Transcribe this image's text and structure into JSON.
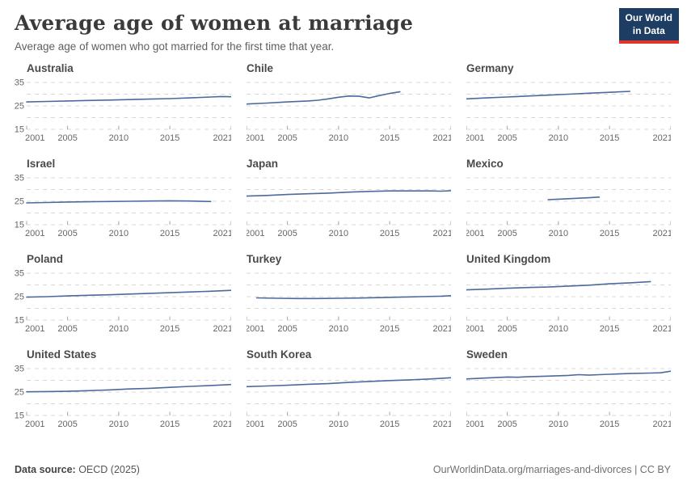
{
  "header": {
    "title": "Average age of women at marriage",
    "subtitle": "Average age of women who got married for the first time that year.",
    "logo": {
      "line1": "Our World",
      "line2": "in Data"
    }
  },
  "footer": {
    "datasource_label": "Data source:",
    "datasource_value": " OECD (2025)",
    "attribution": "OurWorldinData.org/marriages-and-divorces | CC BY"
  },
  "colors": {
    "line": "#4C6A9C",
    "grid": "#d8d8d8",
    "tick_mark": "#a5a5a5",
    "tick_label": "#666666",
    "logo_bg": "#1d3d63",
    "logo_red": "#e0342c"
  },
  "axes": {
    "xlim": [
      2001,
      2021
    ],
    "ylim": [
      15,
      35
    ],
    "xticks": [
      2001,
      2005,
      2010,
      2015,
      2021
    ],
    "yticks": [
      15,
      25,
      35
    ],
    "ygrid": [
      15,
      20,
      25,
      30,
      35
    ],
    "grid_style": "dashed",
    "ylabels_first_column_only": true
  },
  "chart_data": [
    {
      "type": "line",
      "title": "Australia",
      "slug": "australia",
      "points": [
        [
          2001,
          26.7
        ],
        [
          2003,
          26.9
        ],
        [
          2005,
          27.1
        ],
        [
          2007,
          27.3
        ],
        [
          2009,
          27.5
        ],
        [
          2011,
          27.7
        ],
        [
          2013,
          27.9
        ],
        [
          2015,
          28.1
        ],
        [
          2017,
          28.4
        ],
        [
          2019,
          28.8
        ],
        [
          2020,
          29.0
        ],
        [
          2021,
          28.9
        ]
      ]
    },
    {
      "type": "line",
      "title": "Chile",
      "slug": "chile",
      "points": [
        [
          2001,
          25.8
        ],
        [
          2003,
          26.2
        ],
        [
          2005,
          26.7
        ],
        [
          2007,
          27.1
        ],
        [
          2008,
          27.4
        ],
        [
          2009,
          28.0
        ],
        [
          2010,
          28.7
        ],
        [
          2011,
          29.2
        ],
        [
          2012,
          29.1
        ],
        [
          2013,
          28.4
        ],
        [
          2014,
          29.4
        ],
        [
          2015,
          30.3
        ],
        [
          2016,
          31.0
        ]
      ]
    },
    {
      "type": "line",
      "title": "Germany",
      "slug": "germany",
      "points": [
        [
          2001,
          28.0
        ],
        [
          2003,
          28.4
        ],
        [
          2005,
          28.8
        ],
        [
          2007,
          29.2
        ],
        [
          2009,
          29.6
        ],
        [
          2011,
          30.0
        ],
        [
          2013,
          30.4
        ],
        [
          2015,
          30.8
        ],
        [
          2017,
          31.2
        ]
      ]
    },
    {
      "type": "line",
      "title": "Israel",
      "slug": "israel",
      "points": [
        [
          2001,
          24.3
        ],
        [
          2003,
          24.5
        ],
        [
          2005,
          24.7
        ],
        [
          2007,
          24.8
        ],
        [
          2009,
          24.9
        ],
        [
          2011,
          25.0
        ],
        [
          2013,
          25.1
        ],
        [
          2015,
          25.2
        ],
        [
          2017,
          25.1
        ],
        [
          2019,
          24.9
        ]
      ]
    },
    {
      "type": "line",
      "title": "Japan",
      "slug": "japan",
      "points": [
        [
          2001,
          27.2
        ],
        [
          2003,
          27.5
        ],
        [
          2005,
          27.9
        ],
        [
          2007,
          28.2
        ],
        [
          2009,
          28.5
        ],
        [
          2011,
          28.9
        ],
        [
          2013,
          29.2
        ],
        [
          2015,
          29.4
        ],
        [
          2017,
          29.4
        ],
        [
          2019,
          29.4
        ],
        [
          2020,
          29.3
        ],
        [
          2021,
          29.5
        ]
      ]
    },
    {
      "type": "line",
      "title": "Mexico",
      "slug": "mexico",
      "points": [
        [
          2009,
          25.7
        ],
        [
          2010,
          25.9
        ],
        [
          2011,
          26.1
        ],
        [
          2012,
          26.3
        ],
        [
          2013,
          26.5
        ],
        [
          2014,
          26.8
        ]
      ]
    },
    {
      "type": "line",
      "title": "Poland",
      "slug": "poland",
      "points": [
        [
          2001,
          24.8
        ],
        [
          2003,
          25.0
        ],
        [
          2005,
          25.3
        ],
        [
          2007,
          25.6
        ],
        [
          2009,
          25.8
        ],
        [
          2011,
          26.1
        ],
        [
          2013,
          26.4
        ],
        [
          2015,
          26.7
        ],
        [
          2017,
          27.0
        ],
        [
          2019,
          27.3
        ],
        [
          2021,
          27.7
        ]
      ]
    },
    {
      "type": "line",
      "title": "Turkey",
      "slug": "turkey",
      "points": [
        [
          2002,
          24.5
        ],
        [
          2004,
          24.3
        ],
        [
          2006,
          24.2
        ],
        [
          2008,
          24.2
        ],
        [
          2010,
          24.3
        ],
        [
          2012,
          24.4
        ],
        [
          2014,
          24.6
        ],
        [
          2016,
          24.8
        ],
        [
          2018,
          25.0
        ],
        [
          2020,
          25.2
        ],
        [
          2021,
          25.4
        ]
      ]
    },
    {
      "type": "line",
      "title": "United Kingdom",
      "slug": "united-kingdom",
      "points": [
        [
          2001,
          27.9
        ],
        [
          2003,
          28.2
        ],
        [
          2005,
          28.6
        ],
        [
          2007,
          28.9
        ],
        [
          2009,
          29.1
        ],
        [
          2011,
          29.5
        ],
        [
          2013,
          29.9
        ],
        [
          2015,
          30.5
        ],
        [
          2017,
          30.9
        ],
        [
          2019,
          31.4
        ]
      ]
    },
    {
      "type": "line",
      "title": "United States",
      "slug": "united-states",
      "points": [
        [
          2001,
          25.1
        ],
        [
          2003,
          25.2
        ],
        [
          2005,
          25.3
        ],
        [
          2007,
          25.6
        ],
        [
          2009,
          25.9
        ],
        [
          2011,
          26.3
        ],
        [
          2013,
          26.6
        ],
        [
          2015,
          27.0
        ],
        [
          2017,
          27.4
        ],
        [
          2019,
          27.8
        ],
        [
          2021,
          28.2
        ]
      ]
    },
    {
      "type": "line",
      "title": "South Korea",
      "slug": "south-korea",
      "points": [
        [
          2001,
          27.3
        ],
        [
          2003,
          27.6
        ],
        [
          2005,
          27.9
        ],
        [
          2007,
          28.3
        ],
        [
          2009,
          28.6
        ],
        [
          2011,
          29.1
        ],
        [
          2013,
          29.5
        ],
        [
          2015,
          29.9
        ],
        [
          2017,
          30.2
        ],
        [
          2019,
          30.6
        ],
        [
          2021,
          31.1
        ]
      ]
    },
    {
      "type": "line",
      "title": "Sweden",
      "slug": "sweden",
      "points": [
        [
          2001,
          30.6
        ],
        [
          2003,
          31.0
        ],
        [
          2005,
          31.4
        ],
        [
          2006,
          31.3
        ],
        [
          2007,
          31.5
        ],
        [
          2009,
          31.8
        ],
        [
          2011,
          32.1
        ],
        [
          2012,
          32.4
        ],
        [
          2013,
          32.2
        ],
        [
          2014,
          32.4
        ],
        [
          2015,
          32.6
        ],
        [
          2017,
          32.9
        ],
        [
          2019,
          33.1
        ],
        [
          2020,
          33.2
        ],
        [
          2021,
          33.9
        ]
      ]
    }
  ]
}
